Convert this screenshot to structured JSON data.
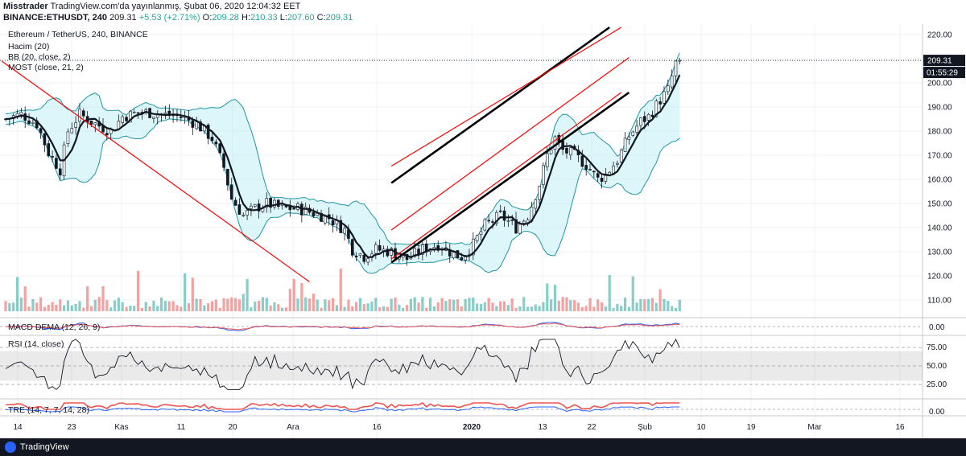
{
  "header": {
    "author": "Misstrader",
    "published": "TradingView.com'da yayınlanmış, Şubat 06, 2020 12:04:32 EET",
    "symbol": "BINANCE:ETHUSDT, 240",
    "last": "209.31",
    "change": "+5.53 (+2.71%)",
    "o_label": "O:",
    "o_value": "209.28",
    "h_label": "H:",
    "h_value": "210.33",
    "l_label": "L:",
    "l_value": "207.60",
    "c_label": "C:",
    "c_value": "209.31"
  },
  "legend": {
    "title": "Ethereum / TetherUS, 240, BINANCE",
    "volume": "Hacim (20)",
    "bb": "BB (20, close, 2)",
    "most": "MOST (close, 21, 2)"
  },
  "panes": {
    "macd": "MACD DEMA (12, 26, 9)",
    "rsi": "RSI (14, close)",
    "tre": "TRE (14, 7, 7, 14, 28)"
  },
  "price_tag": "209.31",
  "countdown_tag": "01:55:29",
  "footer": {
    "brand": "TradingView"
  },
  "colors": {
    "up_candle": "#26a69a",
    "down_candle": "#ef5350",
    "trend_red": "#ff0000",
    "trend_black": "#000000",
    "bb_line": "#2196a6",
    "bb_fill": "#b2ebf2",
    "footer_bg": "#131722"
  },
  "chart_data": {
    "type": "candlestick",
    "title": "Ethereum / TetherUS, 240, BINANCE",
    "y_range": [
      105,
      225
    ],
    "y_ticks": [
      110,
      120,
      130,
      140,
      150,
      160,
      170,
      180,
      190,
      200,
      210,
      220
    ],
    "x_ticks": [
      "14",
      "23",
      "Kas",
      "11",
      "20",
      "Ara",
      "16",
      "2020",
      "13",
      "22",
      "Şub",
      "10",
      "19",
      "Mar",
      "16"
    ],
    "x_ticks_bold": [
      "2020"
    ],
    "price_path": [
      [
        0,
        185
      ],
      [
        4,
        187
      ],
      [
        8,
        183
      ],
      [
        11,
        171
      ],
      [
        14,
        164
      ],
      [
        16,
        180
      ],
      [
        19,
        187
      ],
      [
        23,
        183
      ],
      [
        27,
        180
      ],
      [
        30,
        186
      ],
      [
        35,
        188
      ],
      [
        40,
        187
      ],
      [
        45,
        186
      ],
      [
        49,
        183
      ],
      [
        53,
        177
      ],
      [
        56,
        165
      ],
      [
        58,
        152
      ],
      [
        61,
        145
      ],
      [
        64,
        148
      ],
      [
        67,
        150
      ],
      [
        71,
        148
      ],
      [
        75,
        148
      ],
      [
        79,
        146
      ],
      [
        83,
        144
      ],
      [
        87,
        139
      ],
      [
        89,
        131
      ],
      [
        92,
        128
      ],
      [
        95,
        131
      ],
      [
        99,
        130
      ],
      [
        103,
        127
      ],
      [
        107,
        131
      ],
      [
        111,
        133
      ],
      [
        115,
        129
      ],
      [
        117,
        128
      ],
      [
        120,
        133
      ],
      [
        123,
        141
      ],
      [
        127,
        145
      ],
      [
        131,
        140
      ],
      [
        134,
        145
      ],
      [
        137,
        158
      ],
      [
        139,
        170
      ],
      [
        141,
        177
      ],
      [
        143,
        172
      ],
      [
        146,
        170
      ],
      [
        149,
        166
      ],
      [
        152,
        160
      ],
      [
        154,
        162
      ],
      [
        157,
        168
      ],
      [
        160,
        178
      ],
      [
        163,
        184
      ],
      [
        165,
        186
      ],
      [
        168,
        193
      ],
      [
        170,
        197
      ],
      [
        172,
        208
      ],
      [
        173,
        210
      ]
    ],
    "trendlines": [
      {
        "color": "red",
        "from": [
          -1,
          209
        ],
        "to": [
          78,
          117.5
        ]
      },
      {
        "color": "black",
        "from": [
          99,
          158.5
        ],
        "to": [
          155,
          223
        ]
      },
      {
        "color": "black",
        "from": [
          99,
          125.5
        ],
        "to": [
          160,
          196
        ]
      },
      {
        "color": "red",
        "from": [
          99,
          165.5
        ],
        "to": [
          158,
          223
        ]
      },
      {
        "color": "red",
        "from": [
          99,
          139
        ],
        "to": [
          160,
          210.5
        ]
      },
      {
        "color": "red",
        "from": [
          99,
          127
        ],
        "to": [
          158,
          196
        ]
      }
    ],
    "rsi": {
      "levels": [
        25,
        50,
        75
      ],
      "band": [
        30,
        70
      ]
    },
    "macd": {
      "level": 0
    },
    "tre": {
      "level": 0
    }
  }
}
